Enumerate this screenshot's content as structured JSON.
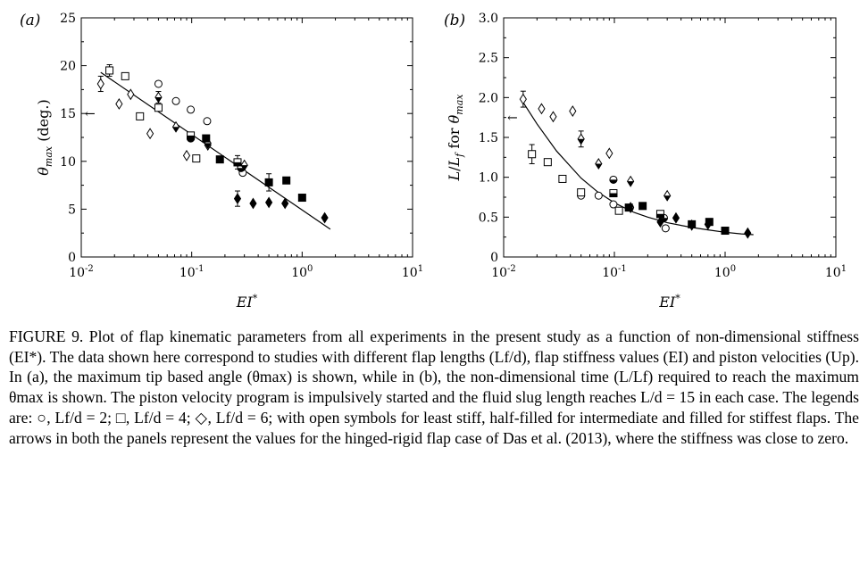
{
  "chart_data": [
    {
      "type": "scatter",
      "panel_label": "(a)",
      "xlabel": "EI*",
      "ylabel": "θmax (deg.)",
      "xscale": "log",
      "xlim": [
        0.01,
        10
      ],
      "ylim": [
        0,
        25
      ],
      "xticks": [
        0.01,
        0.1,
        1,
        10
      ],
      "xtick_labels": [
        "10^-2",
        "10^-1",
        "10^0",
        "10^1"
      ],
      "yticks": [
        0,
        5,
        10,
        15,
        20,
        25
      ],
      "ytick_labels": [
        "0",
        "5",
        "10",
        "15",
        "20",
        "25"
      ],
      "grid": false,
      "arrow": {
        "y": 15,
        "symbol": "←"
      },
      "fit_line": [
        [
          0.015,
          19.3
        ],
        [
          1.8,
          2.9
        ]
      ],
      "series": [
        {
          "marker": "circle",
          "fill": "open",
          "points": [
            {
              "x": 0.05,
              "y": 18.1
            },
            {
              "x": 0.072,
              "y": 16.3
            },
            {
              "x": 0.098,
              "y": 15.4
            },
            {
              "x": 0.138,
              "y": 14.2
            },
            {
              "x": 0.29,
              "y": 8.8
            }
          ]
        },
        {
          "marker": "square",
          "fill": "open",
          "points": [
            {
              "x": 0.018,
              "y": 19.5,
              "err": 0.6
            },
            {
              "x": 0.025,
              "y": 18.9
            },
            {
              "x": 0.034,
              "y": 14.7
            },
            {
              "x": 0.05,
              "y": 15.6
            },
            {
              "x": 0.11,
              "y": 10.3
            }
          ]
        },
        {
          "marker": "diamond",
          "fill": "open",
          "points": [
            {
              "x": 0.015,
              "y": 18.1,
              "err": 0.8
            },
            {
              "x": 0.022,
              "y": 16.0
            },
            {
              "x": 0.028,
              "y": 17.0
            },
            {
              "x": 0.042,
              "y": 12.9
            },
            {
              "x": 0.09,
              "y": 10.6
            },
            {
              "x": 0.14,
              "y": 11.7
            }
          ]
        },
        {
          "marker": "circle",
          "fill": "half",
          "points": [
            {
              "x": 0.098,
              "y": 12.4
            },
            {
              "x": 0.28,
              "y": 9.3
            }
          ]
        },
        {
          "marker": "square",
          "fill": "half",
          "points": [
            {
              "x": 0.098,
              "y": 12.7
            },
            {
              "x": 0.26,
              "y": 9.9,
              "err": 0.7
            }
          ]
        },
        {
          "marker": "diamond",
          "fill": "half",
          "points": [
            {
              "x": 0.05,
              "y": 16.7,
              "err": 0.6
            },
            {
              "x": 0.072,
              "y": 13.6
            },
            {
              "x": 0.14,
              "y": 11.9
            },
            {
              "x": 0.3,
              "y": 9.6
            }
          ]
        },
        {
          "marker": "square",
          "fill": "filled",
          "points": [
            {
              "x": 0.135,
              "y": 12.4
            },
            {
              "x": 0.18,
              "y": 10.2
            },
            {
              "x": 0.5,
              "y": 7.8,
              "err": 0.9
            },
            {
              "x": 0.72,
              "y": 8.0
            },
            {
              "x": 1.0,
              "y": 6.2
            }
          ]
        },
        {
          "marker": "diamond",
          "fill": "filled",
          "points": [
            {
              "x": 0.26,
              "y": 6.1,
              "err": 0.8
            },
            {
              "x": 0.36,
              "y": 5.6
            },
            {
              "x": 0.5,
              "y": 5.7
            },
            {
              "x": 0.7,
              "y": 5.6
            },
            {
              "x": 1.6,
              "y": 4.1
            }
          ]
        }
      ]
    },
    {
      "type": "scatter",
      "panel_label": "(b)",
      "xlabel": "EI*",
      "ylabel": "L/Lf for θmax",
      "xscale": "log",
      "xlim": [
        0.01,
        10
      ],
      "ylim": [
        0,
        3.0
      ],
      "xticks": [
        0.01,
        0.1,
        1,
        10
      ],
      "xtick_labels": [
        "10^-2",
        "10^-1",
        "10^0",
        "10^1"
      ],
      "yticks": [
        0,
        0.5,
        1.0,
        1.5,
        2.0,
        2.5,
        3.0
      ],
      "ytick_labels": [
        "0",
        "0.5",
        "1.0",
        "1.5",
        "2.0",
        "2.5",
        "3.0"
      ],
      "grid": false,
      "arrow": {
        "y": 1.75,
        "symbol": "←"
      },
      "fit_curve": [
        [
          0.015,
          1.94
        ],
        [
          0.02,
          1.67
        ],
        [
          0.03,
          1.33
        ],
        [
          0.05,
          0.99
        ],
        [
          0.07,
          0.82
        ],
        [
          0.1,
          0.68
        ],
        [
          0.15,
          0.56
        ],
        [
          0.2,
          0.5
        ],
        [
          0.3,
          0.43
        ],
        [
          0.5,
          0.37
        ],
        [
          0.7,
          0.34
        ],
        [
          1.0,
          0.31
        ],
        [
          1.4,
          0.29
        ],
        [
          1.8,
          0.28
        ]
      ],
      "series": [
        {
          "marker": "circle",
          "fill": "open",
          "points": [
            {
              "x": 0.05,
              "y": 0.77
            },
            {
              "x": 0.072,
              "y": 0.77
            },
            {
              "x": 0.098,
              "y": 0.66
            },
            {
              "x": 0.138,
              "y": 0.62
            },
            {
              "x": 0.29,
              "y": 0.36
            }
          ]
        },
        {
          "marker": "square",
          "fill": "open",
          "points": [
            {
              "x": 0.018,
              "y": 1.29,
              "err": 0.12
            },
            {
              "x": 0.025,
              "y": 1.19
            },
            {
              "x": 0.034,
              "y": 0.98
            },
            {
              "x": 0.05,
              "y": 0.81
            },
            {
              "x": 0.11,
              "y": 0.58
            }
          ]
        },
        {
          "marker": "diamond",
          "fill": "open",
          "points": [
            {
              "x": 0.015,
              "y": 1.98,
              "err": 0.1
            },
            {
              "x": 0.022,
              "y": 1.86
            },
            {
              "x": 0.028,
              "y": 1.76
            },
            {
              "x": 0.042,
              "y": 1.83
            },
            {
              "x": 0.09,
              "y": 1.3
            },
            {
              "x": 0.14,
              "y": 0.62
            }
          ]
        },
        {
          "marker": "circle",
          "fill": "half",
          "points": [
            {
              "x": 0.098,
              "y": 0.97
            },
            {
              "x": 0.28,
              "y": 0.49
            }
          ]
        },
        {
          "marker": "square",
          "fill": "half",
          "points": [
            {
              "x": 0.098,
              "y": 0.8
            },
            {
              "x": 0.26,
              "y": 0.54,
              "err": 0.04
            }
          ]
        },
        {
          "marker": "diamond",
          "fill": "half",
          "points": [
            {
              "x": 0.05,
              "y": 1.48,
              "err": 0.1
            },
            {
              "x": 0.072,
              "y": 1.17
            },
            {
              "x": 0.14,
              "y": 0.95
            },
            {
              "x": 0.3,
              "y": 0.77
            }
          ]
        },
        {
          "marker": "square",
          "fill": "filled",
          "points": [
            {
              "x": 0.135,
              "y": 0.62
            },
            {
              "x": 0.18,
              "y": 0.64
            },
            {
              "x": 0.5,
              "y": 0.41
            },
            {
              "x": 0.72,
              "y": 0.44
            },
            {
              "x": 1.0,
              "y": 0.33
            }
          ]
        },
        {
          "marker": "diamond",
          "fill": "filled",
          "points": [
            {
              "x": 0.26,
              "y": 0.44
            },
            {
              "x": 0.36,
              "y": 0.49
            },
            {
              "x": 0.5,
              "y": 0.4
            },
            {
              "x": 0.7,
              "y": 0.41
            },
            {
              "x": 1.6,
              "y": 0.3
            }
          ]
        }
      ]
    }
  ],
  "caption": {
    "text": "FIGURE 9. Plot of flap kinematic parameters from all experiments in the present study as a function of non-dimensional stiffness (EI*). The data shown here correspond to studies with different flap lengths (Lf/d), flap stiffness values (EI) and piston velocities (Up). In (a), the maximum tip based angle (θmax) is shown, while in (b), the non-dimensional time (L/Lf) required to reach the maximum θmax is shown. The piston velocity program is impulsively started and the fluid slug length reaches L/d = 15 in each case. The legends are: ○, Lf/d = 2; □, Lf/d = 4; ◇, Lf/d = 6; with open symbols for least stiff, half-filled for intermediate and filled for stiffest flaps. The arrows in both the panels represent the values for the hinged-rigid flap case of Das et al. (2013), where the stiffness was close to zero."
  }
}
